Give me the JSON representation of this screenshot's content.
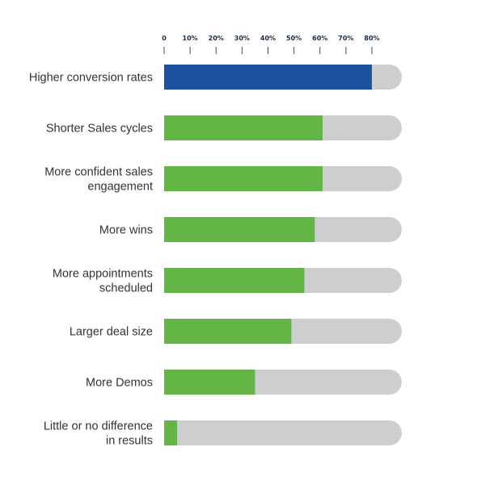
{
  "chart_data": {
    "type": "bar",
    "orientation": "horizontal",
    "title": "",
    "xlabel": "",
    "ylabel": "",
    "xlim": [
      0,
      100
    ],
    "ticks": [
      {
        "value": 0,
        "label": "0"
      },
      {
        "value": 10,
        "label": "10%"
      },
      {
        "value": 20,
        "label": "20%"
      },
      {
        "value": 30,
        "label": "30%"
      },
      {
        "value": 40,
        "label": "40%"
      },
      {
        "value": 50,
        "label": "50%"
      },
      {
        "value": 60,
        "label": "60%"
      },
      {
        "value": 70,
        "label": "70%"
      },
      {
        "value": 80,
        "label": "80%"
      }
    ],
    "categories": [
      [
        "Higher conversion rates"
      ],
      [
        "Shorter Sales cycles"
      ],
      [
        "More confident sales",
        "engagement"
      ],
      [
        "More wins"
      ],
      [
        "More appointments",
        "scheduled"
      ],
      [
        "Larger deal size"
      ],
      [
        "More Demos"
      ],
      [
        "Little or no difference",
        "in results"
      ]
    ],
    "values": [
      80,
      61,
      61,
      58,
      54,
      49,
      35,
      5
    ],
    "grid": false,
    "legend": "none",
    "colors": {
      "highlight": "#1d52a0",
      "bar": "#63b545",
      "track": "#cdcecf",
      "tick": "#1d52a0"
    }
  }
}
